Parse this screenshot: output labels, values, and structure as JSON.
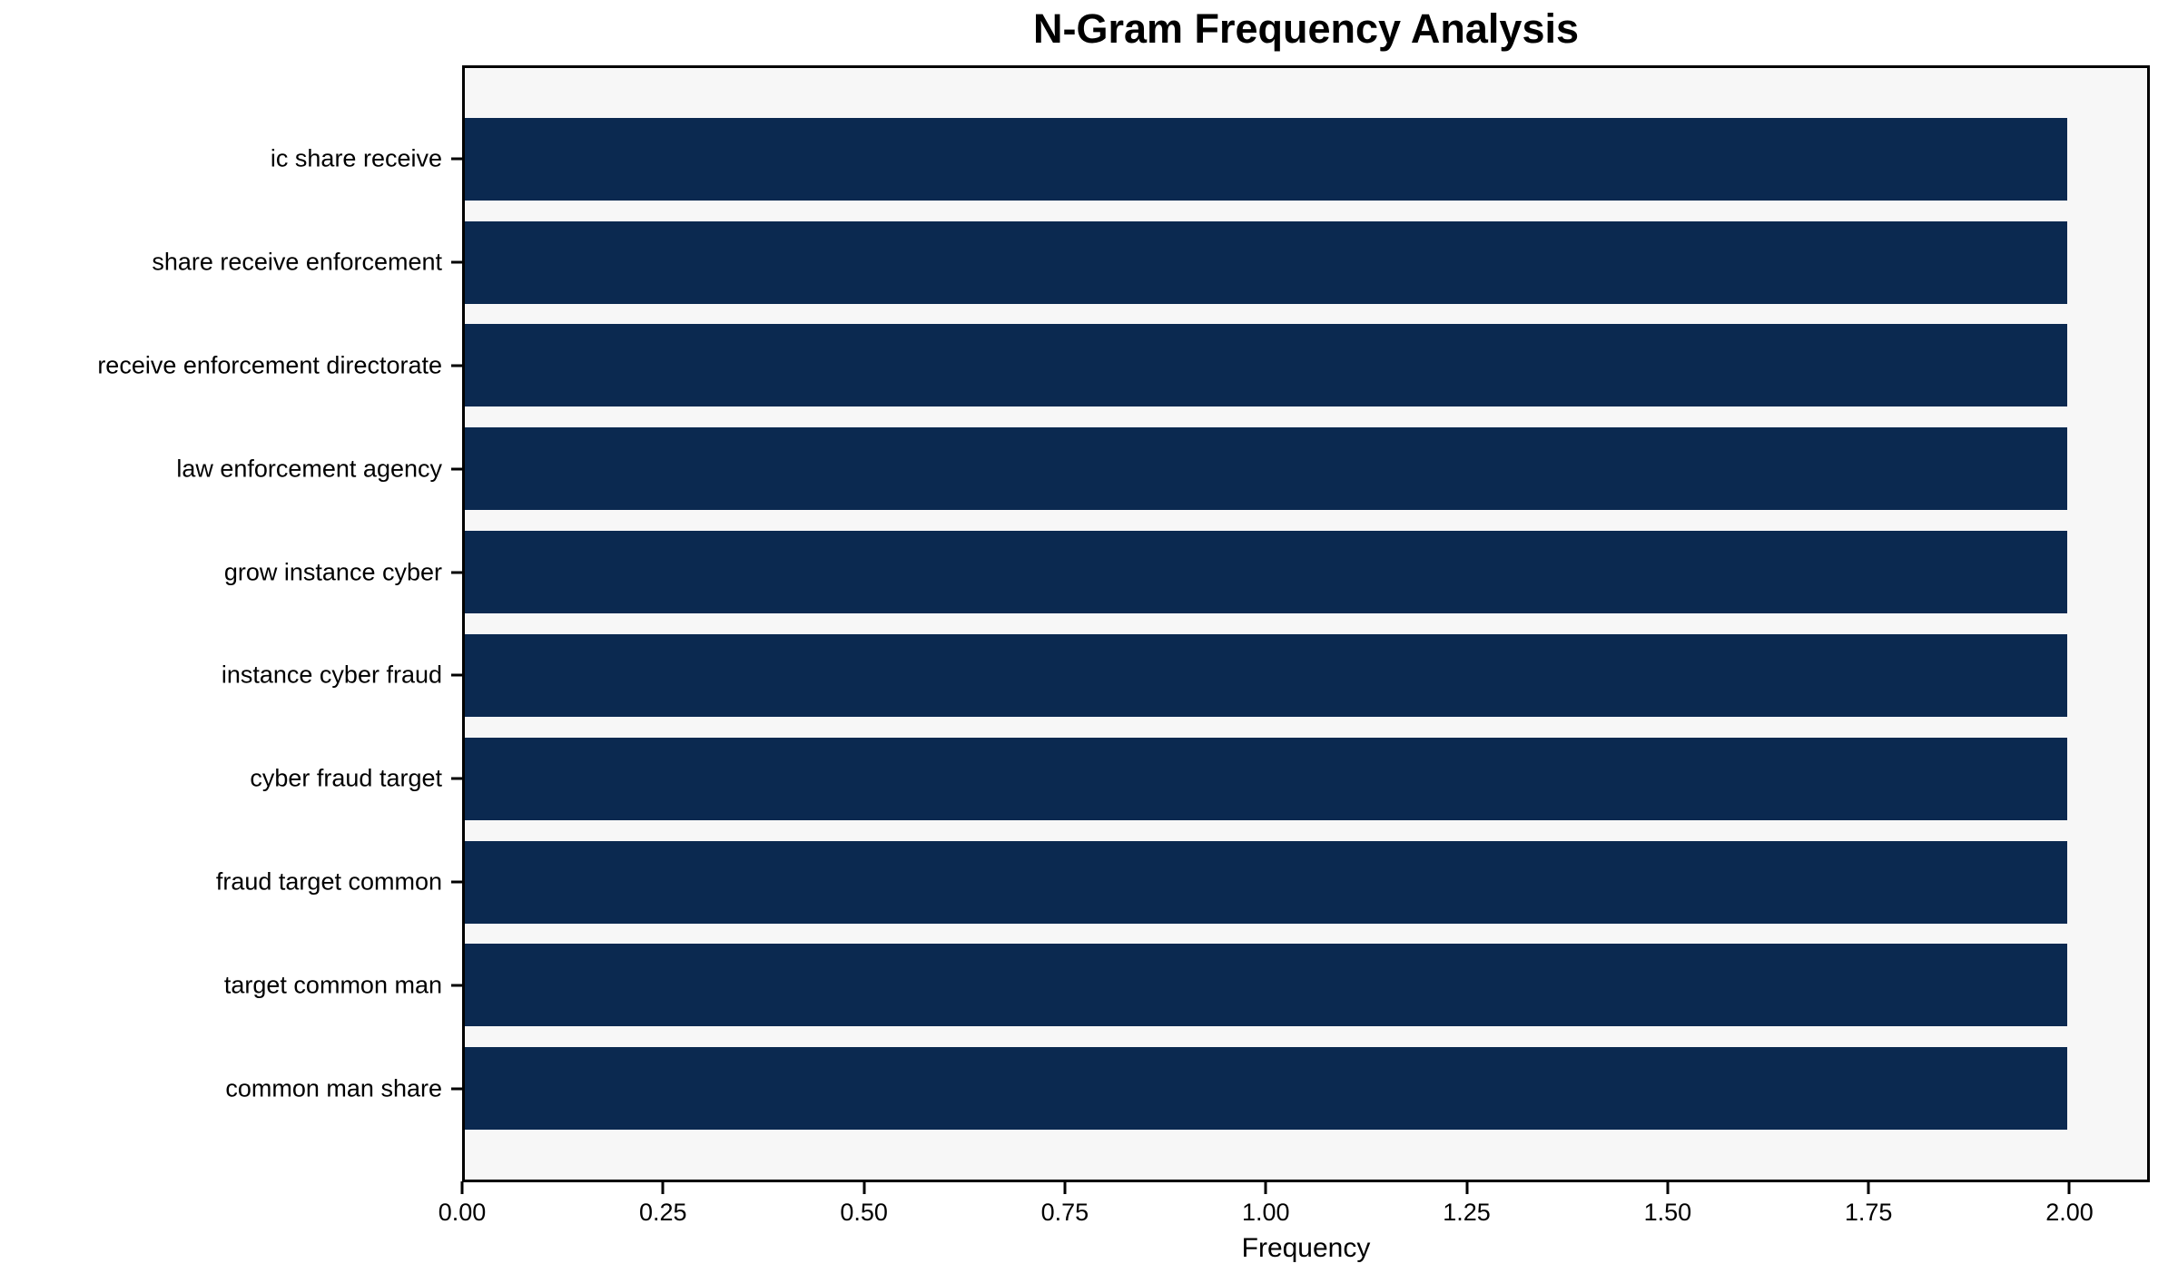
{
  "chart_data": {
    "type": "bar",
    "orientation": "horizontal",
    "title": "N-Gram Frequency Analysis",
    "xlabel": "Frequency",
    "ylabel": "",
    "categories": [
      "ic share receive",
      "share receive enforcement",
      "receive enforcement directorate",
      "law enforcement agency",
      "grow instance cyber",
      "instance cyber fraud",
      "cyber fraud target",
      "fraud target common",
      "target common man",
      "common man share"
    ],
    "values": [
      2,
      2,
      2,
      2,
      2,
      2,
      2,
      2,
      2,
      2
    ],
    "xlim": [
      0,
      2.1
    ],
    "xtick_labels": [
      "0.00",
      "0.25",
      "0.50",
      "0.75",
      "1.00",
      "1.25",
      "1.50",
      "1.75",
      "2.00"
    ],
    "xtick_values": [
      0,
      0.25,
      0.5,
      0.75,
      1.0,
      1.25,
      1.5,
      1.75,
      2.0
    ],
    "bar_color": "#0b2950",
    "plot_background": "#f7f7f7",
    "figure_background": "#ffffff",
    "grid": false,
    "legend": false
  }
}
